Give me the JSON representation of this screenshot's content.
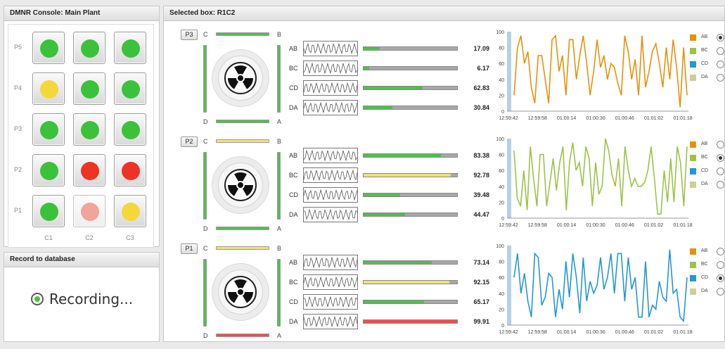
{
  "left_panel": {
    "title": "DMNR Console: Main Plant"
  },
  "record_panel": {
    "title": "Record to database",
    "status": "Recording..."
  },
  "right_panel": {
    "title": "Selected box: R1C2"
  },
  "grid": {
    "row_labels": [
      "P5",
      "P4",
      "P3",
      "P2",
      "P1"
    ],
    "col_labels": [
      "C1",
      "C2",
      "C3"
    ],
    "rows": [
      [
        "#3cc13c",
        "#3cc13c",
        "#3cc13c"
      ],
      [
        "#f2d83a",
        "#3cc13c",
        "#3cc13c"
      ],
      [
        "#3cc13c",
        "#3cc13c",
        "#3cc13c"
      ],
      [
        "#3cc13c",
        "#ee3224",
        "#ee3224"
      ],
      [
        "#3cc13c",
        "#f2a39a",
        "#f2d83a"
      ]
    ]
  },
  "colors": {
    "AB": "#e8900e",
    "BC": "#9dc24a",
    "CD": "#2596d6",
    "DA": "#cfcc9e",
    "green": "#52bd52",
    "yellow": "#f2e07a",
    "red": "#ee4e4a"
  },
  "sections": [
    {
      "tag": "P3",
      "corners": {
        "c": "C",
        "b": "B",
        "d": "D",
        "a": "A"
      },
      "top_bar": "green",
      "bottom_bar": "green",
      "metrics": [
        {
          "label": "AB",
          "value": "17.09",
          "fill": 0.17,
          "color": "green"
        },
        {
          "label": "BC",
          "value": "6.17",
          "fill": 0.06,
          "color": "green"
        },
        {
          "label": "CD",
          "value": "62.83",
          "fill": 0.63,
          "color": "green"
        },
        {
          "label": "DA",
          "value": "30.84",
          "fill": 0.31,
          "color": "green"
        }
      ],
      "chart": {
        "series": "AB",
        "color": "#e8900e",
        "values": [
          20,
          80,
          95,
          60,
          75,
          30,
          10,
          70,
          70,
          40,
          10,
          90,
          95,
          50,
          70,
          20,
          90,
          90,
          40,
          70,
          95,
          60,
          20,
          50,
          90,
          55,
          70,
          40,
          60,
          55,
          35,
          20,
          95,
          75,
          40,
          65,
          20,
          95,
          30,
          50,
          75,
          85,
          60,
          30,
          80,
          40,
          90,
          55,
          5,
          80,
          20
        ]
      }
    },
    {
      "tag": "P2",
      "corners": {
        "c": "C",
        "b": "B",
        "d": "D",
        "a": "A"
      },
      "top_bar": "yellow",
      "bottom_bar": "green",
      "metrics": [
        {
          "label": "AB",
          "value": "83.38",
          "fill": 0.83,
          "color": "green"
        },
        {
          "label": "BC",
          "value": "92.78",
          "fill": 0.93,
          "color": "yellow"
        },
        {
          "label": "CD",
          "value": "39.48",
          "fill": 0.39,
          "color": "green"
        },
        {
          "label": "DA",
          "value": "44.47",
          "fill": 0.44,
          "color": "green"
        }
      ],
      "chart": {
        "series": "BC",
        "color": "#9dc24a",
        "values": [
          85,
          25,
          15,
          60,
          10,
          90,
          50,
          15,
          80,
          80,
          15,
          45,
          75,
          35,
          70,
          90,
          10,
          70,
          95,
          60,
          70,
          40,
          90,
          75,
          15,
          70,
          30,
          40,
          100,
          85,
          55,
          40,
          75,
          15,
          90,
          60,
          40,
          50,
          40,
          40,
          45,
          60,
          90,
          50,
          5,
          5,
          60,
          20,
          75,
          20,
          90,
          70,
          15,
          90
        ]
      }
    },
    {
      "tag": "P1",
      "corners": {
        "c": "C",
        "b": "B",
        "d": "D",
        "a": "A"
      },
      "top_bar": "yellow",
      "bottom_bar": "red",
      "metrics": [
        {
          "label": "AB",
          "value": "73.14",
          "fill": 0.73,
          "color": "green"
        },
        {
          "label": "BC",
          "value": "92.15",
          "fill": 0.92,
          "color": "yellow"
        },
        {
          "label": "CD",
          "value": "65.17",
          "fill": 0.65,
          "color": "green"
        },
        {
          "label": "DA",
          "value": "99.91",
          "fill": 1.0,
          "color": "red"
        }
      ],
      "chart": {
        "series": "CD",
        "color": "#2596d6",
        "values": [
          60,
          90,
          40,
          65,
          30,
          10,
          90,
          85,
          25,
          35,
          65,
          60,
          10,
          45,
          20,
          80,
          35,
          90,
          60,
          15,
          85,
          30,
          55,
          40,
          50,
          85,
          45,
          60,
          90,
          40,
          90,
          90,
          30,
          85,
          45,
          60,
          10,
          10,
          80,
          10,
          25,
          20,
          55,
          35,
          30,
          95,
          40,
          45,
          10,
          5,
          60
        ]
      }
    }
  ],
  "chart_axis": {
    "y_ticks": [
      "100",
      "80",
      "60",
      "40",
      "20",
      "0"
    ],
    "x_ticks": [
      "12:59:42",
      "12:59:58",
      "01:00:14",
      "01:00:30",
      "01:00:46",
      "01:01:02",
      "01:01:18"
    ]
  },
  "legend": {
    "items": [
      "AB",
      "BC",
      "CD",
      "DA"
    ],
    "selected": [
      "AB",
      "BC",
      "CD"
    ]
  }
}
